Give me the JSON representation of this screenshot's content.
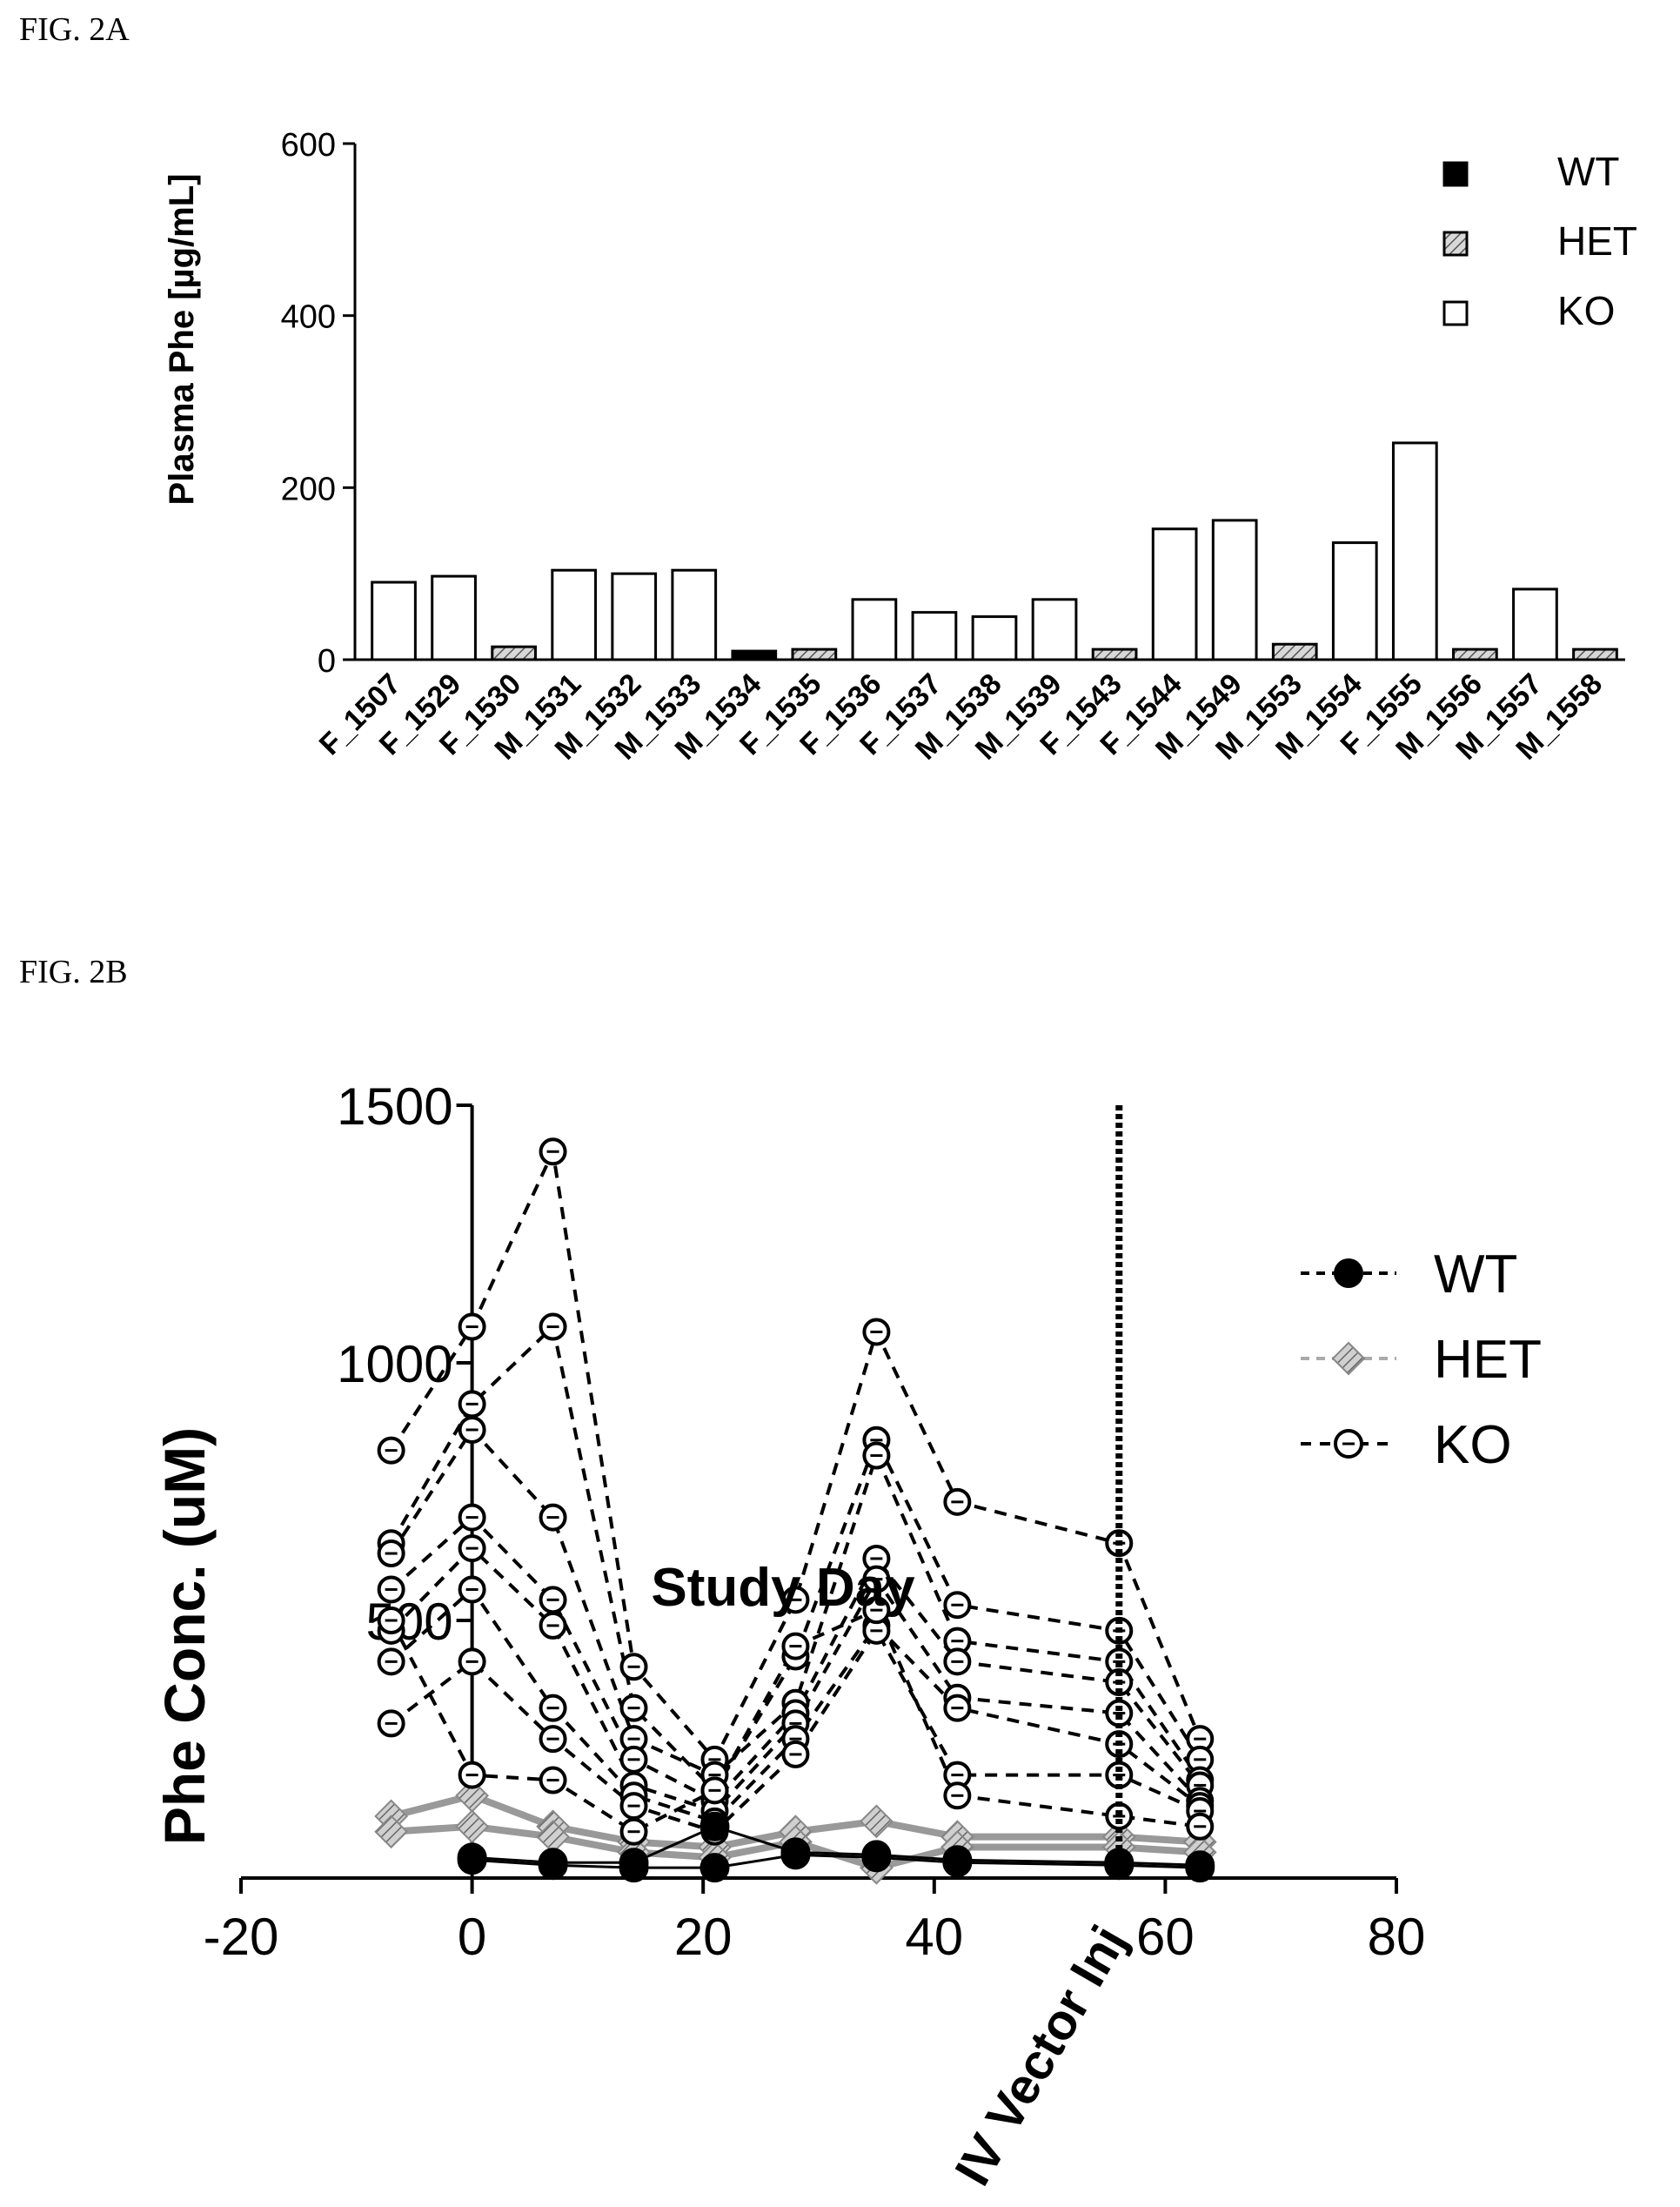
{
  "figure_a_label": "FIG. 2A",
  "figure_b_label": "FIG. 2B",
  "colors": {
    "wt": "#000000",
    "het": "#888888",
    "ko": "#ffffff",
    "line": "#000000",
    "het_line": "#aaaaaa"
  },
  "chart_data": [
    {
      "type": "bar",
      "ylabel": "Plasma Phe [µg/mL]",
      "xlabel": "",
      "ylim": [
        0,
        600
      ],
      "yticks": [
        "0",
        "200",
        "400",
        "600"
      ],
      "legend_position": "top-right",
      "legend": [
        {
          "key": "WT",
          "label": "WT",
          "fill": "solid-black"
        },
        {
          "key": "HET",
          "label": "HET",
          "fill": "hatched-gray"
        },
        {
          "key": "KO",
          "label": "KO",
          "fill": "white"
        }
      ],
      "categories": [
        "F_1507",
        "F_1529",
        "F_1530",
        "M_1531",
        "M_1532",
        "M_1533",
        "M_1534",
        "F_1535",
        "F_1536",
        "F_1537",
        "M_1538",
        "M_1539",
        "F_1543",
        "F_1544",
        "M_1549",
        "M_1553",
        "M_1554",
        "F_1555",
        "M_1556",
        "M_1557",
        "M_1558"
      ],
      "values": [
        90,
        97,
        15,
        104,
        100,
        104,
        10,
        12,
        70,
        55,
        50,
        70,
        12,
        152,
        162,
        18,
        136,
        252,
        12,
        82,
        12
      ],
      "genotype": [
        "KO",
        "KO",
        "HET",
        "KO",
        "KO",
        "KO",
        "WT",
        "HET",
        "KO",
        "KO",
        "KO",
        "KO",
        "HET",
        "KO",
        "KO",
        "HET",
        "KO",
        "KO",
        "HET",
        "KO",
        "HET"
      ]
    },
    {
      "type": "line",
      "ylabel": "Phe Conc. (uM)",
      "xlabel": "Study Day",
      "xlim": [
        -20,
        80
      ],
      "ylim": [
        0,
        1500
      ],
      "xticks": [
        "-20",
        "0",
        "20",
        "40",
        "60",
        "80"
      ],
      "yticks": [
        "500",
        "1000",
        "1500"
      ],
      "annotation": {
        "label": "IV Vector Inj",
        "x": 56
      },
      "legend_position": "top-right",
      "legend": [
        {
          "key": "WT",
          "label": "WT",
          "style": "solid-filled-circle"
        },
        {
          "key": "HET",
          "label": "HET",
          "style": "gray-hatched-diamond"
        },
        {
          "key": "KO",
          "label": "KO",
          "style": "dashed-open-circle"
        }
      ],
      "series": [
        {
          "group": "KO",
          "x": [
            -7,
            0,
            7,
            14,
            21,
            28,
            35,
            42,
            56,
            63
          ],
          "y": [
            830,
            1070,
            1410,
            410,
            230,
            540,
            1060,
            730,
            650,
            270
          ]
        },
        {
          "group": "KO",
          "x": [
            -7,
            0,
            7,
            14,
            21,
            28,
            35,
            42,
            56,
            63
          ],
          "y": [
            650,
            920,
            1070,
            330,
            170,
            430,
            850,
            530,
            480,
            230
          ]
        },
        {
          "group": "KO",
          "x": [
            -7,
            0,
            7,
            14,
            21,
            28,
            35,
            42,
            56,
            63
          ],
          "y": [
            630,
            870,
            700,
            270,
            200,
            340,
            820,
            460,
            420,
            190
          ]
        },
        {
          "group": "KO",
          "x": [
            -7,
            0,
            7,
            14,
            21,
            28,
            35,
            42,
            56,
            63
          ],
          "y": [
            560,
            700,
            540,
            230,
            150,
            320,
            620,
            420,
            380,
            180
          ]
        },
        {
          "group": "KO",
          "x": [
            -7,
            0,
            7,
            14,
            21,
            28,
            35,
            42,
            56,
            63
          ],
          "y": [
            480,
            640,
            490,
            180,
            130,
            300,
            580,
            350,
            320,
            150
          ]
        },
        {
          "group": "KO",
          "x": [
            -7,
            0,
            7,
            14,
            21,
            28,
            35,
            42,
            56,
            63
          ],
          "y": [
            420,
            560,
            330,
            160,
            110,
            270,
            490,
            330,
            260,
            140
          ]
        },
        {
          "group": "KO",
          "x": [
            -7,
            0,
            7,
            14,
            21,
            28,
            35,
            42,
            56,
            63
          ],
          "y": [
            300,
            420,
            270,
            140,
            90,
            240,
            480,
            200,
            200,
            130
          ]
        },
        {
          "group": "KO",
          "x": [
            -7,
            0,
            7,
            14,
            21,
            28,
            35,
            42,
            56,
            63
          ],
          "y": [
            500,
            200,
            190,
            90,
            170,
            450,
            520,
            160,
            120,
            100
          ]
        },
        {
          "group": "HET",
          "x": [
            -7,
            0,
            7,
            14,
            21,
            28,
            35,
            42,
            56,
            63
          ],
          "y": [
            120,
            160,
            100,
            70,
            60,
            90,
            110,
            80,
            80,
            70
          ]
        },
        {
          "group": "HET",
          "x": [
            -7,
            0,
            7,
            14,
            21,
            28,
            35,
            42,
            56,
            63
          ],
          "y": [
            90,
            100,
            80,
            50,
            40,
            70,
            20,
            60,
            60,
            50
          ]
        },
        {
          "group": "WT",
          "x": [
            0,
            7,
            14,
            21,
            28,
            35,
            42,
            56,
            63
          ],
          "y": [
            40,
            30,
            30,
            100,
            50,
            45,
            35,
            30,
            25
          ]
        },
        {
          "group": "WT",
          "x": [
            0,
            7,
            14,
            21,
            28,
            35,
            42,
            56,
            63
          ],
          "y": [
            35,
            25,
            20,
            20,
            45,
            40,
            30,
            25,
            20
          ]
        }
      ]
    }
  ]
}
